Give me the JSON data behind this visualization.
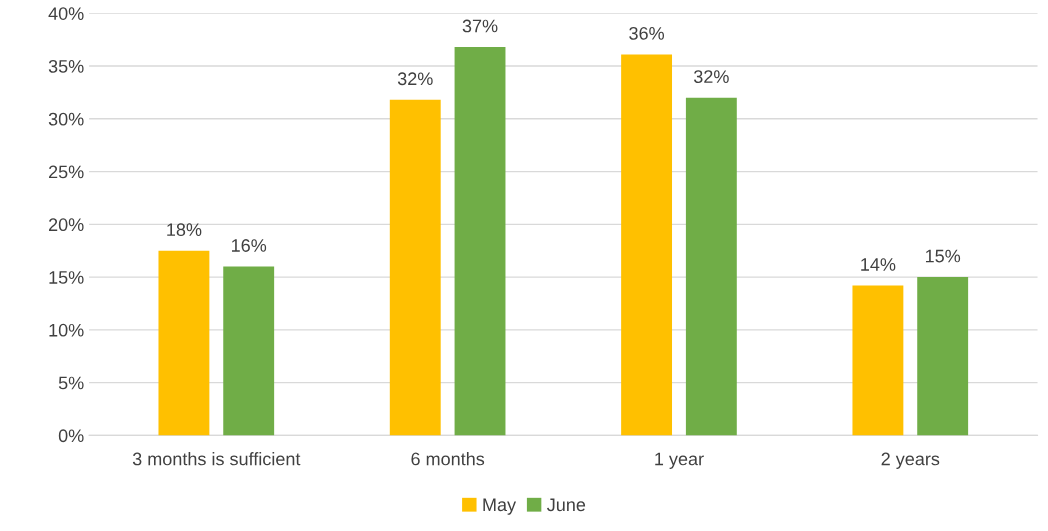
{
  "chart_data": {
    "type": "bar",
    "categories": [
      "3 months is sufficient",
      "6 months",
      "1 year",
      "2 years"
    ],
    "series": [
      {
        "name": "May",
        "color": "#ffc000",
        "values": [
          17.5,
          31.8,
          36.1,
          14.2
        ],
        "value_labels": [
          "18%",
          "32%",
          "36%",
          "14%"
        ]
      },
      {
        "name": "June",
        "color": "#70ad47",
        "values": [
          16,
          36.8,
          32,
          15
        ],
        "value_labels": [
          "16%",
          "37%",
          "32%",
          "15%"
        ]
      }
    ],
    "ylim": [
      0,
      40
    ],
    "yticks": [
      {
        "value": 0,
        "label": "0%"
      },
      {
        "value": 5,
        "label": "5%"
      },
      {
        "value": 10,
        "label": "10%"
      },
      {
        "value": 15,
        "label": "15%"
      },
      {
        "value": 20,
        "label": "20%"
      },
      {
        "value": 25,
        "label": "25%"
      },
      {
        "value": 30,
        "label": "30%"
      },
      {
        "value": 35,
        "label": "35%"
      },
      {
        "value": 40,
        "label": "40%"
      }
    ],
    "grid": "y",
    "legend": "bottom"
  }
}
